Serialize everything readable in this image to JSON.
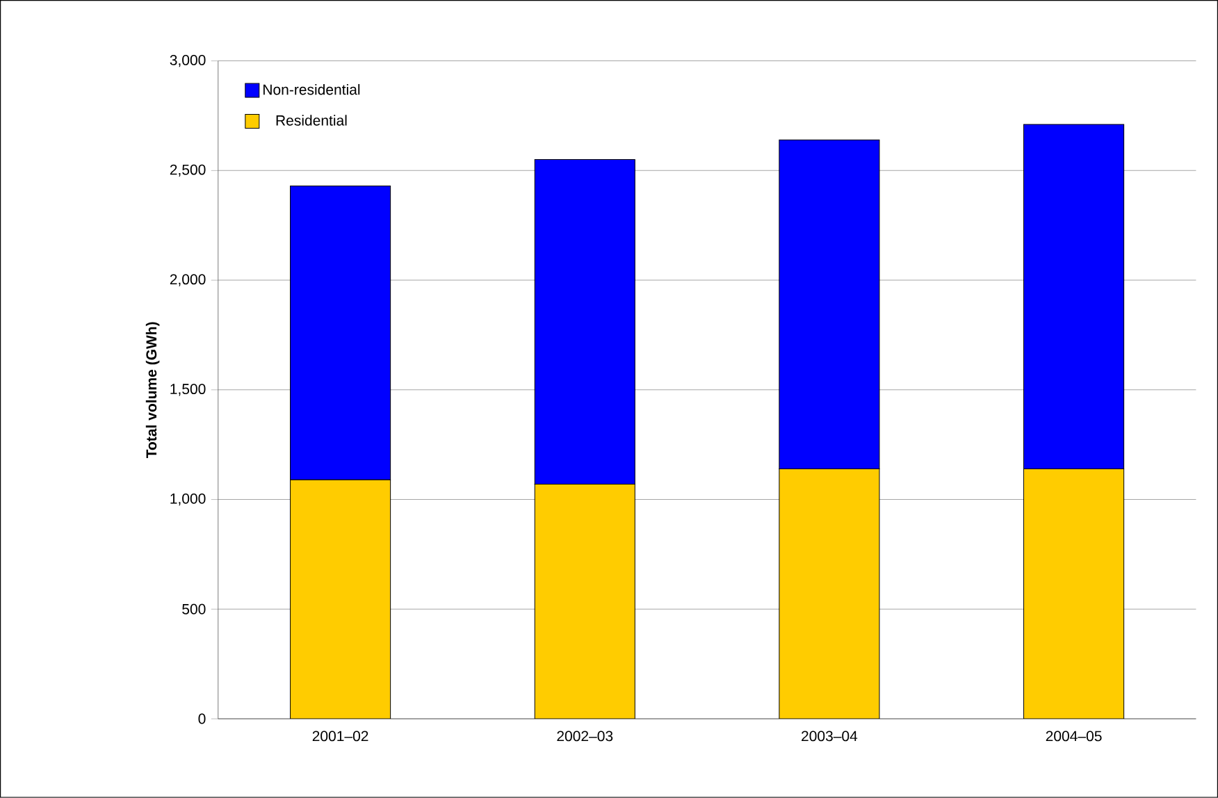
{
  "chart_data": {
    "type": "bar",
    "stacked": true,
    "ylabel": "Total volume (GWh)",
    "categories": [
      "2001–02",
      "2002–03",
      "2003–04",
      "2004–05"
    ],
    "series": [
      {
        "name": "Residential",
        "color": "#ffcc00",
        "values": [
          1090,
          1070,
          1140,
          1140
        ]
      },
      {
        "name": "Non-residential",
        "color": "#0000ff",
        "values": [
          1340,
          1480,
          1500,
          1570
        ]
      }
    ],
    "ylim": [
      0,
      3000
    ],
    "yticks": [
      {
        "value": 0,
        "label": "0"
      },
      {
        "value": 500,
        "label": "500"
      },
      {
        "value": 1000,
        "label": "1,000"
      },
      {
        "value": 1500,
        "label": "1,500"
      },
      {
        "value": 2000,
        "label": "2,000"
      },
      {
        "value": 2500,
        "label": "2,500"
      },
      {
        "value": 3000,
        "label": "3,000"
      }
    ],
    "grid": "y",
    "legend": "top left"
  }
}
